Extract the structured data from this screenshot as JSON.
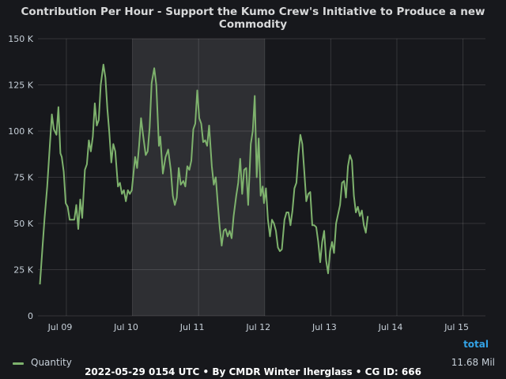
{
  "chart_data": {
    "type": "line",
    "title": "Contribution Per Hour - Support the Kumo Crew's Initiative to Produce a new Commodity",
    "xlabel": "",
    "ylabel": "",
    "ylim": [
      0,
      150000
    ],
    "y_ticks": [
      {
        "value": 0,
        "label": "0"
      },
      {
        "value": 25000,
        "label": "25 K"
      },
      {
        "value": 50000,
        "label": "50 K"
      },
      {
        "value": 75000,
        "label": "75 K"
      },
      {
        "value": 100000,
        "label": "100 K"
      },
      {
        "value": 125000,
        "label": "125 K"
      },
      {
        "value": 150000,
        "label": "150 K"
      }
    ],
    "x_unit": "day (Jul 09 = 9)",
    "xlim": [
      8.57,
      15.34
    ],
    "x_ticks": [
      {
        "value": 9,
        "label": "Jul 09"
      },
      {
        "value": 10,
        "label": "Jul 10"
      },
      {
        "value": 11,
        "label": "Jul 11"
      },
      {
        "value": 12,
        "label": "Jul 12"
      },
      {
        "value": 13,
        "label": "Jul 13"
      },
      {
        "value": 14,
        "label": "Jul 14"
      },
      {
        "value": 15,
        "label": "Jul 15"
      }
    ],
    "shaded_band": [
      10,
      12
    ],
    "grid": true,
    "legend_position": "bottom",
    "legend_header": "total",
    "series": [
      {
        "name": "Quantity",
        "color": "#7eb26d",
        "total_label": "11.68 Mil",
        "points": [
          [
            8.6,
            17000
          ],
          [
            8.64,
            38000
          ],
          [
            8.67,
            53000
          ],
          [
            8.71,
            70000
          ],
          [
            8.75,
            92000
          ],
          [
            8.78,
            109000
          ],
          [
            8.81,
            101000
          ],
          [
            8.85,
            98000
          ],
          [
            8.88,
            113000
          ],
          [
            8.91,
            88000
          ],
          [
            8.93,
            86000
          ],
          [
            8.96,
            78000
          ],
          [
            8.99,
            61000
          ],
          [
            9.02,
            59000
          ],
          [
            9.05,
            52000
          ],
          [
            9.09,
            52000
          ],
          [
            9.12,
            52000
          ],
          [
            9.15,
            60000
          ],
          [
            9.18,
            47000
          ],
          [
            9.21,
            63000
          ],
          [
            9.24,
            53000
          ],
          [
            9.28,
            79000
          ],
          [
            9.31,
            82000
          ],
          [
            9.34,
            95000
          ],
          [
            9.37,
            89000
          ],
          [
            9.4,
            97000
          ],
          [
            9.43,
            115000
          ],
          [
            9.46,
            103000
          ],
          [
            9.49,
            106000
          ],
          [
            9.52,
            125000
          ],
          [
            9.56,
            136000
          ],
          [
            9.59,
            129000
          ],
          [
            9.62,
            112000
          ],
          [
            9.65,
            99000
          ],
          [
            9.68,
            83000
          ],
          [
            9.71,
            93000
          ],
          [
            9.74,
            89000
          ],
          [
            9.78,
            70000
          ],
          [
            9.81,
            72000
          ],
          [
            9.84,
            66000
          ],
          [
            9.87,
            68000
          ],
          [
            9.9,
            62000
          ],
          [
            9.93,
            68000
          ],
          [
            9.96,
            66000
          ],
          [
            9.99,
            68000
          ],
          [
            10.04,
            86000
          ],
          [
            10.07,
            80000
          ],
          [
            10.1,
            92000
          ],
          [
            10.13,
            107000
          ],
          [
            10.16,
            98000
          ],
          [
            10.2,
            87000
          ],
          [
            10.23,
            89000
          ],
          [
            10.26,
            102000
          ],
          [
            10.29,
            126000
          ],
          [
            10.33,
            134000
          ],
          [
            10.36,
            125000
          ],
          [
            10.4,
            92000
          ],
          [
            10.42,
            97000
          ],
          [
            10.46,
            77000
          ],
          [
            10.5,
            86000
          ],
          [
            10.54,
            90000
          ],
          [
            10.58,
            79000
          ],
          [
            10.61,
            65000
          ],
          [
            10.64,
            60000
          ],
          [
            10.67,
            64000
          ],
          [
            10.7,
            80000
          ],
          [
            10.73,
            71000
          ],
          [
            10.77,
            73000
          ],
          [
            10.8,
            70000
          ],
          [
            10.83,
            81000
          ],
          [
            10.86,
            79000
          ],
          [
            10.89,
            84000
          ],
          [
            10.92,
            101000
          ],
          [
            10.95,
            104000
          ],
          [
            10.98,
            122000
          ],
          [
            11.01,
            107000
          ],
          [
            11.04,
            104000
          ],
          [
            11.07,
            94000
          ],
          [
            11.1,
            95000
          ],
          [
            11.13,
            92000
          ],
          [
            11.16,
            103000
          ],
          [
            11.2,
            81000
          ],
          [
            11.23,
            71000
          ],
          [
            11.26,
            75000
          ],
          [
            11.29,
            61000
          ],
          [
            11.32,
            48000
          ],
          [
            11.35,
            38000
          ],
          [
            11.38,
            46000
          ],
          [
            11.41,
            47000
          ],
          [
            11.44,
            43000
          ],
          [
            11.47,
            46000
          ],
          [
            11.5,
            42000
          ],
          [
            11.53,
            54000
          ],
          [
            11.57,
            65000
          ],
          [
            11.6,
            72000
          ],
          [
            11.63,
            85000
          ],
          [
            11.66,
            66000
          ],
          [
            11.69,
            79000
          ],
          [
            11.72,
            80000
          ],
          [
            11.75,
            60000
          ],
          [
            11.79,
            93000
          ],
          [
            11.82,
            100000
          ],
          [
            11.85,
            119000
          ],
          [
            11.88,
            75000
          ],
          [
            11.91,
            96000
          ],
          [
            11.94,
            65000
          ],
          [
            11.97,
            70000
          ],
          [
            11.99,
            61000
          ],
          [
            12.02,
            69000
          ],
          [
            12.05,
            52000
          ],
          [
            12.08,
            43000
          ],
          [
            12.11,
            52000
          ],
          [
            12.14,
            50000
          ],
          [
            12.17,
            46000
          ],
          [
            12.2,
            37000
          ],
          [
            12.23,
            35000
          ],
          [
            12.26,
            36000
          ],
          [
            12.3,
            52000
          ],
          [
            12.33,
            56000
          ],
          [
            12.36,
            56000
          ],
          [
            12.39,
            49000
          ],
          [
            12.42,
            57000
          ],
          [
            12.45,
            69000
          ],
          [
            12.48,
            72000
          ],
          [
            12.51,
            87000
          ],
          [
            12.54,
            98000
          ],
          [
            12.57,
            93000
          ],
          [
            12.6,
            78000
          ],
          [
            12.63,
            62000
          ],
          [
            12.66,
            66000
          ],
          [
            12.69,
            67000
          ],
          [
            12.72,
            49000
          ],
          [
            12.75,
            49000
          ],
          [
            12.78,
            48000
          ],
          [
            12.81,
            40000
          ],
          [
            12.84,
            29000
          ],
          [
            12.87,
            40000
          ],
          [
            12.9,
            46000
          ],
          [
            12.93,
            30000
          ],
          [
            12.96,
            23000
          ],
          [
            12.99,
            35000
          ],
          [
            13.02,
            40000
          ],
          [
            13.05,
            34000
          ],
          [
            13.08,
            50000
          ],
          [
            13.11,
            55000
          ],
          [
            13.14,
            60000
          ],
          [
            13.17,
            72000
          ],
          [
            13.2,
            73000
          ],
          [
            13.23,
            64000
          ],
          [
            13.26,
            81000
          ],
          [
            13.29,
            87000
          ],
          [
            13.32,
            84000
          ],
          [
            13.35,
            65000
          ],
          [
            13.38,
            56000
          ],
          [
            13.41,
            59000
          ],
          [
            13.44,
            54000
          ],
          [
            13.47,
            57000
          ],
          [
            13.5,
            49000
          ],
          [
            13.53,
            45000
          ],
          [
            13.56,
            54000
          ]
        ]
      }
    ]
  },
  "footer": "2022-05-29 0154 UTC • By CMDR Winter Iherglass • CG ID: 666"
}
